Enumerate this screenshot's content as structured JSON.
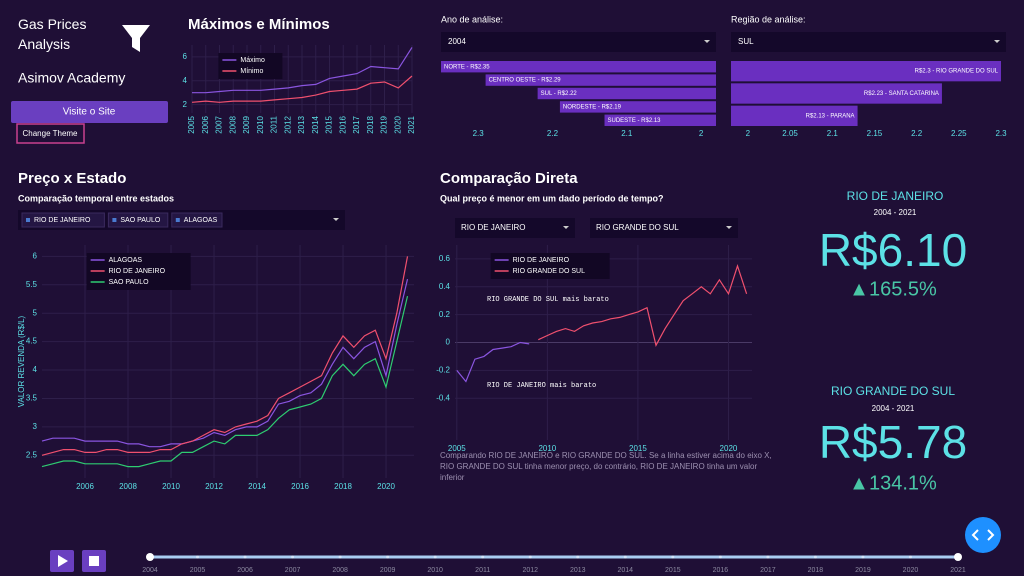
{
  "sidebar": {
    "title": "Gas Prices Analysis",
    "subtitle": "Asimov Academy",
    "site_button": "Visite o Site",
    "theme_button": "Change Theme"
  },
  "filters": {
    "year_label": "Ano de análise:",
    "year_value": "2004",
    "region_label": "Região de análise:",
    "region_value": "SUL"
  },
  "state_section": {
    "title": "Preço x Estado",
    "subtitle": "Comparação temporal entre estados",
    "chips": [
      "RIO DE JANEIRO",
      "SAO PAULO",
      "ALAGOAS"
    ]
  },
  "compare_section": {
    "title": "Comparação Direta",
    "subtitle": "Qual preço é menor em um dado período de tempo?",
    "state_a": "RIO DE JANEIRO",
    "state_b": "RIO GRANDE DO SUL",
    "caption": "Comparando RIO DE JANEIRO e RIO GRANDE DO SUL. Se a linha estiver acima do eixo X, RIO GRANDE DO SUL tinha menor preço, do contrário, RIO DE JANEIRO tinha um valor inferior"
  },
  "cards": [
    {
      "state": "RIO DE JANEIRO",
      "period": "2004 - 2021",
      "price": "R$6.10",
      "change": "▲165.5%"
    },
    {
      "state": "RIO GRANDE DO SUL",
      "period": "2004 - 2021",
      "price": "R$5.78",
      "change": "▲134.1%"
    }
  ],
  "slider": {
    "marks": [
      2004,
      2005,
      2006,
      2007,
      2008,
      2009,
      2010,
      2011,
      2012,
      2013,
      2014,
      2015,
      2016,
      2017,
      2018,
      2019,
      2020,
      2021
    ]
  },
  "chart_data": [
    {
      "type": "line",
      "title": "Máximos e Mínimos",
      "x": [
        2005,
        2006,
        2007,
        2008,
        2009,
        2010,
        2011,
        2012,
        2013,
        2014,
        2015,
        2016,
        2017,
        2018,
        2019,
        2020,
        2021
      ],
      "xlim": [
        2005,
        2021
      ],
      "xticks": [
        2005,
        2006,
        2007,
        2008,
        2009,
        2010,
        2011,
        2012,
        2013,
        2014,
        2015,
        2016,
        2017,
        2018,
        2019,
        2020,
        2021
      ],
      "ylim": [
        1.3,
        7.0
      ],
      "yticks": [
        2,
        4,
        6
      ],
      "grid": true,
      "legend": "top-left",
      "series": [
        {
          "name": "Máximo",
          "color": "#8a55e0",
          "values": [
            3.0,
            3.0,
            3.1,
            3.2,
            3.2,
            3.2,
            3.3,
            3.4,
            3.6,
            3.7,
            4.2,
            4.4,
            4.6,
            5.2,
            5.1,
            5.0,
            6.8
          ]
        },
        {
          "name": "Mínimo",
          "color": "#f0506e",
          "values": [
            2.2,
            2.3,
            2.2,
            2.3,
            2.3,
            2.3,
            2.4,
            2.5,
            2.6,
            2.8,
            3.1,
            3.2,
            3.3,
            3.8,
            3.9,
            3.4,
            4.4
          ]
        }
      ]
    },
    {
      "type": "bar",
      "orientation": "horizontal",
      "color": "#6a2fc0",
      "values": [
        2.35,
        2.29,
        2.22,
        2.19,
        2.13
      ],
      "value_labels": [
        "NORTE - R$2.35",
        "CENTRO OESTE - R$2.29",
        "SUL - R$2.22",
        "NORDESTE - R$2.19",
        "SUDESTE - R$2.13"
      ],
      "xlim": [
        2.35,
        1.98
      ],
      "xticks": [
        2.3,
        2.2,
        2.1,
        2
      ],
      "grid": false
    },
    {
      "type": "bar",
      "orientation": "horizontal",
      "color": "#6a2fc0",
      "values": [
        2.3,
        2.23,
        2.13
      ],
      "value_labels": [
        "R$2.3 - RIO GRANDE DO SUL",
        "R$2.23 - SANTA CATARINA",
        "R$2.13 - PARANA"
      ],
      "xlim": [
        1.98,
        2.3
      ],
      "xticks": [
        2,
        2.05,
        2.1,
        2.15,
        2.2,
        2.25,
        2.3
      ],
      "grid": false
    },
    {
      "type": "line",
      "y_label": "VALOR REVENDA (R$/L)",
      "x": [
        2004,
        2004.5,
        2005,
        2005.5,
        2006,
        2006.5,
        2007,
        2007.5,
        2008,
        2008.5,
        2009,
        2009.5,
        2010,
        2010.5,
        2011,
        2011.5,
        2012,
        2012.5,
        2013,
        2013.5,
        2014,
        2014.5,
        2015,
        2015.5,
        2016,
        2016.5,
        2017,
        2017.5,
        2018,
        2018.5,
        2019,
        2019.5,
        2020,
        2020.5,
        2021
      ],
      "xlim": [
        2004,
        2021.3
      ],
      "xticks": [
        2006,
        2008,
        2010,
        2012,
        2014,
        2016,
        2018,
        2020
      ],
      "ylim": [
        2.1,
        6.2
      ],
      "yticks": [
        2.5,
        3,
        3.5,
        4,
        4.5,
        5,
        5.5,
        6
      ],
      "grid": true,
      "legend": "top-left",
      "series": [
        {
          "name": "ALAGOAS",
          "color": "#8a55e0",
          "values": [
            2.75,
            2.8,
            2.8,
            2.8,
            2.75,
            2.75,
            2.75,
            2.75,
            2.7,
            2.7,
            2.65,
            2.65,
            2.7,
            2.7,
            2.75,
            2.8,
            2.9,
            2.85,
            2.95,
            3.0,
            3.0,
            3.1,
            3.4,
            3.45,
            3.55,
            3.6,
            3.75,
            4.1,
            4.4,
            4.2,
            4.4,
            4.5,
            3.9,
            4.8,
            5.6
          ]
        },
        {
          "name": "RIO DE JANEIRO",
          "color": "#f0506e",
          "values": [
            2.5,
            2.55,
            2.6,
            2.6,
            2.55,
            2.55,
            2.6,
            2.6,
            2.55,
            2.55,
            2.55,
            2.6,
            2.6,
            2.7,
            2.75,
            2.85,
            2.95,
            2.9,
            3.0,
            3.05,
            3.1,
            3.2,
            3.5,
            3.6,
            3.7,
            3.8,
            3.9,
            4.3,
            4.6,
            4.4,
            4.6,
            4.7,
            4.2,
            5.0,
            6.0
          ]
        },
        {
          "name": "SAO PAULO",
          "color": "#2ecc71",
          "values": [
            2.3,
            2.35,
            2.4,
            2.4,
            2.35,
            2.35,
            2.35,
            2.35,
            2.3,
            2.3,
            2.35,
            2.4,
            2.4,
            2.55,
            2.55,
            2.65,
            2.75,
            2.7,
            2.85,
            2.85,
            2.85,
            2.95,
            3.15,
            3.3,
            3.35,
            3.4,
            3.5,
            3.9,
            4.1,
            3.9,
            4.1,
            4.2,
            3.7,
            4.5,
            5.3
          ]
        }
      ]
    },
    {
      "type": "line",
      "x": [
        2005,
        2005.5,
        2006,
        2006.5,
        2007,
        2007.5,
        2008,
        2008.5,
        2009,
        2009.5,
        2010,
        2010.5,
        2011,
        2011.5,
        2012,
        2012.5,
        2013,
        2013.5,
        2014,
        2014.5,
        2015,
        2015.5,
        2016,
        2016.5,
        2017,
        2017.5,
        2018,
        2018.5,
        2019,
        2019.5,
        2020,
        2020.5,
        2021
      ],
      "xlim": [
        2004.9,
        2021.3
      ],
      "xticks": [
        2005,
        2010,
        2015,
        2020
      ],
      "ylim": [
        -0.7,
        0.7
      ],
      "yticks": [
        -0.4,
        -0.2,
        0,
        0.2,
        0.4,
        0.6
      ],
      "grid": true,
      "legend": "top-left",
      "annotations": [
        "RIO GRANDE DO SUL mais barato",
        "RIO DE JANEIRO mais barato"
      ],
      "series": [
        {
          "name": "RIO DE JANEIRO",
          "color": "#8a55e0",
          "values": [
            -0.2,
            -0.28,
            -0.12,
            -0.1,
            -0.05,
            -0.04,
            -0.03,
            0.0,
            -0.01,
            null,
            null,
            null,
            null,
            null,
            null,
            null,
            null,
            null,
            null,
            null,
            null,
            null,
            null,
            null,
            null,
            null,
            null,
            null,
            null,
            null,
            null,
            null,
            null
          ]
        },
        {
          "name": "RIO GRANDE DO SUL",
          "color": "#f0506e",
          "values": [
            null,
            null,
            null,
            null,
            null,
            null,
            null,
            null,
            null,
            0.02,
            0.05,
            0.08,
            0.1,
            0.08,
            0.12,
            0.14,
            0.15,
            0.17,
            0.18,
            0.2,
            0.22,
            0.25,
            -0.02,
            0.1,
            0.2,
            0.3,
            0.35,
            0.4,
            0.35,
            0.45,
            0.35,
            0.55,
            0.35
          ]
        }
      ]
    }
  ]
}
